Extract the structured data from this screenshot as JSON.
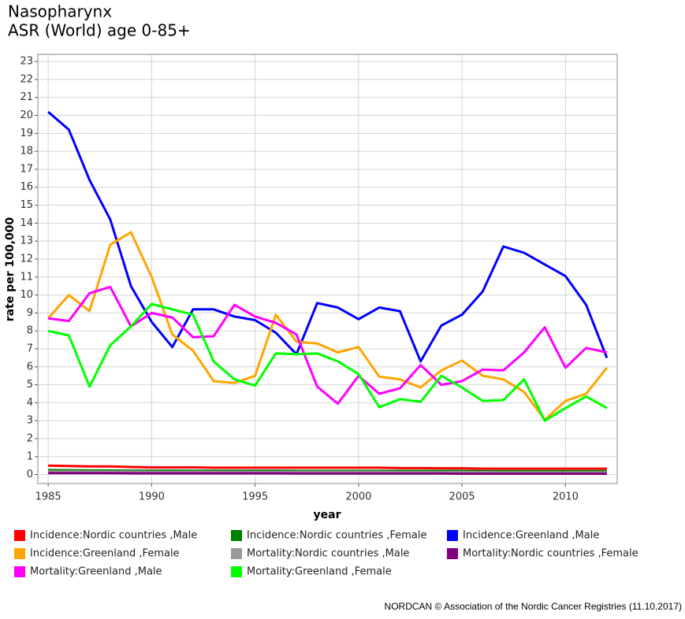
{
  "chart_data": {
    "type": "line",
    "title": "Nasopharynx",
    "subtitle": "ASR (World) age 0-85+",
    "x_label": "year",
    "y_label": "rate per 100,000",
    "footer": "NORDCAN © Association of the Nordic Cancer Registries (11.10.2017)",
    "x": [
      1985,
      1986,
      1987,
      1988,
      1989,
      1990,
      1991,
      1992,
      1993,
      1994,
      1995,
      1996,
      1997,
      1998,
      1999,
      2000,
      2001,
      2002,
      2003,
      2004,
      2005,
      2006,
      2007,
      2008,
      2009,
      2010,
      2011,
      2012
    ],
    "xlim": [
      1984.5,
      2012.5
    ],
    "xticks": [
      1985,
      1990,
      1995,
      2000,
      2005,
      2010
    ],
    "ylim": [
      -0.5,
      23.4
    ],
    "yticks": [
      0,
      1,
      2,
      3,
      4,
      5,
      6,
      7,
      8,
      9,
      10,
      11,
      12,
      13,
      14,
      15,
      16,
      17,
      18,
      19,
      20,
      21,
      22,
      23
    ],
    "grid": true,
    "series": [
      {
        "name": "Incidence:Nordic countries ,Male",
        "color": "#ff0000",
        "values": [
          0.5,
          0.48,
          0.45,
          0.45,
          0.42,
          0.4,
          0.4,
          0.4,
          0.38,
          0.38,
          0.38,
          0.38,
          0.38,
          0.38,
          0.38,
          0.38,
          0.38,
          0.36,
          0.36,
          0.35,
          0.35,
          0.33,
          0.33,
          0.33,
          0.33,
          0.33,
          0.33,
          0.33
        ]
      },
      {
        "name": "Incidence:Nordic countries ,Female",
        "color": "#008000",
        "values": [
          0.25,
          0.24,
          0.23,
          0.23,
          0.22,
          0.22,
          0.22,
          0.21,
          0.21,
          0.21,
          0.21,
          0.21,
          0.2,
          0.2,
          0.2,
          0.2,
          0.2,
          0.2,
          0.2,
          0.2,
          0.2,
          0.19,
          0.19,
          0.19,
          0.19,
          0.19,
          0.19,
          0.19
        ]
      },
      {
        "name": "Incidence:Greenland ,Male",
        "color": "#0000ff",
        "values": [
          20.2,
          19.2,
          16.4,
          14.2,
          10.5,
          8.5,
          7.1,
          9.2,
          9.2,
          8.8,
          8.6,
          7.9,
          6.7,
          9.55,
          9.3,
          8.65,
          9.3,
          9.1,
          6.3,
          8.3,
          8.9,
          10.2,
          12.7,
          12.35,
          11.7,
          11.05,
          9.45,
          6.5
        ]
      },
      {
        "name": "Incidence:Greenland ,Female",
        "color": "#ffa500",
        "values": [
          8.7,
          10.0,
          9.1,
          12.8,
          13.5,
          11.0,
          7.8,
          6.9,
          5.2,
          5.1,
          5.5,
          8.9,
          7.4,
          7.3,
          6.8,
          7.1,
          5.45,
          5.3,
          4.85,
          5.8,
          6.35,
          5.5,
          5.3,
          4.6,
          3.05,
          4.1,
          4.5,
          5.95
        ]
      },
      {
        "name": "Mortality:Nordic countries ,Male",
        "color": "#999999",
        "values": [
          0.17,
          0.17,
          0.16,
          0.16,
          0.16,
          0.15,
          0.15,
          0.15,
          0.15,
          0.15,
          0.14,
          0.14,
          0.14,
          0.14,
          0.14,
          0.14,
          0.14,
          0.13,
          0.13,
          0.13,
          0.13,
          0.13,
          0.12,
          0.12,
          0.12,
          0.12,
          0.12,
          0.12
        ]
      },
      {
        "name": "Mortality:Nordic countries ,Female",
        "color": "#800080",
        "values": [
          0.08,
          0.08,
          0.08,
          0.08,
          0.07,
          0.07,
          0.07,
          0.07,
          0.07,
          0.07,
          0.07,
          0.07,
          0.06,
          0.06,
          0.06,
          0.06,
          0.06,
          0.06,
          0.06,
          0.06,
          0.05,
          0.05,
          0.05,
          0.05,
          0.05,
          0.05,
          0.05,
          0.05
        ]
      },
      {
        "name": "Mortality:Greenland ,Male",
        "color": "#ff00ff",
        "values": [
          8.7,
          8.55,
          10.1,
          10.45,
          8.25,
          9.0,
          8.75,
          7.65,
          7.7,
          9.45,
          8.8,
          8.45,
          7.8,
          4.9,
          3.95,
          5.5,
          4.5,
          4.8,
          6.1,
          5.0,
          5.2,
          5.85,
          5.8,
          6.8,
          8.2,
          5.95,
          7.05,
          6.8
        ]
      },
      {
        "name": "Mortality:Greenland ,Female",
        "color": "#00ff00",
        "values": [
          8.0,
          7.75,
          4.9,
          7.2,
          8.25,
          9.5,
          9.2,
          8.9,
          6.3,
          5.3,
          4.95,
          6.75,
          6.7,
          6.75,
          6.3,
          5.6,
          3.75,
          4.2,
          4.05,
          5.5,
          4.85,
          4.1,
          4.15,
          5.3,
          3.0,
          3.7,
          4.35,
          3.7
        ]
      }
    ]
  }
}
